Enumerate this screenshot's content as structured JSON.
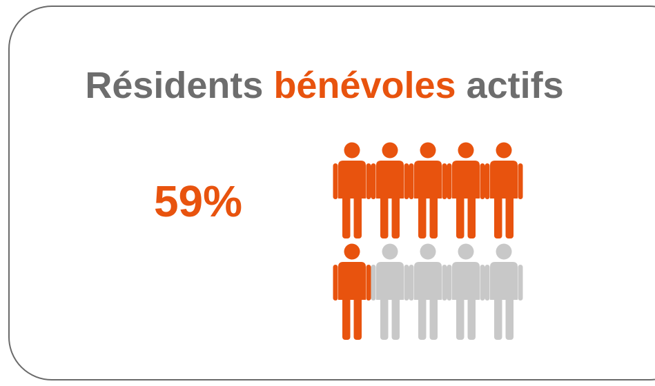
{
  "header": {
    "title_words": [
      "Résidents",
      "bénévoles",
      "actifs"
    ]
  },
  "stat": {
    "text": "59%"
  }
}
